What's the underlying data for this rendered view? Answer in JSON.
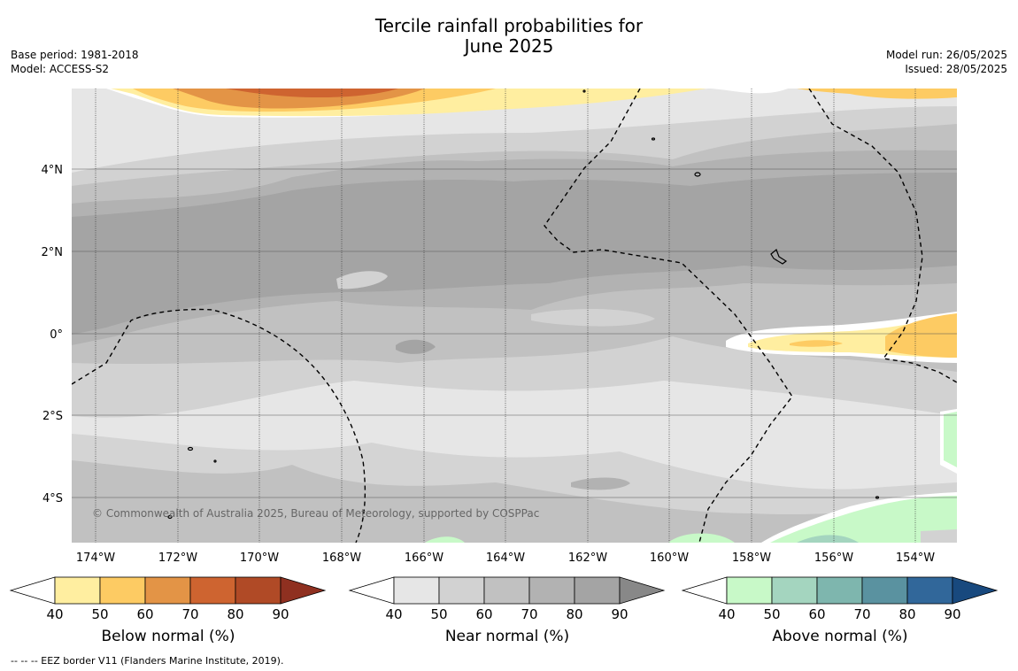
{
  "title_line1": "Tercile rainfall probabilities for",
  "title_line2": "June 2025",
  "meta_left": [
    "Base period: 1981-2018",
    "Model: ACCESS-S2"
  ],
  "meta_right": [
    "Model run: 26/05/2025",
    "Issued: 28/05/2025"
  ],
  "copyright": "© Commonwealth of Australia 2025, Bureau of Meteorology, supported by COSPPac",
  "footnote": "--  --  -- EEZ border V11 (Flanders Marine Institute, 2019).",
  "lon_labels": [
    "174°W",
    "172°W",
    "170°W",
    "168°W",
    "166°W",
    "164°W",
    "162°W",
    "160°W",
    "158°W",
    "156°W",
    "154°W"
  ],
  "lat_labels": [
    "4°N",
    "2°N",
    "0°",
    "2°S",
    "4°S"
  ],
  "colorbars": [
    {
      "label": "Below normal (%)",
      "ticks": [
        "40",
        "50",
        "60",
        "70",
        "80",
        "90"
      ],
      "colors": [
        "#ffffff",
        "#ffeea0",
        "#fdcb63",
        "#e39446",
        "#ce6430",
        "#b04a26",
        "#8f3020"
      ]
    },
    {
      "label": "Near normal (%)",
      "ticks": [
        "40",
        "50",
        "60",
        "70",
        "80",
        "90"
      ],
      "colors": [
        "#ffffff",
        "#e6e6e6",
        "#d2d2d2",
        "#c1c1c1",
        "#b2b2b2",
        "#a4a4a4",
        "#888888"
      ]
    },
    {
      "label": "Above normal (%)",
      "ticks": [
        "40",
        "50",
        "60",
        "70",
        "80",
        "90"
      ],
      "colors": [
        "#ffffff",
        "#c8f9c8",
        "#a4d5bf",
        "#7eb6ae",
        "#5a92a0",
        "#31679a",
        "#18497e"
      ]
    }
  ]
}
